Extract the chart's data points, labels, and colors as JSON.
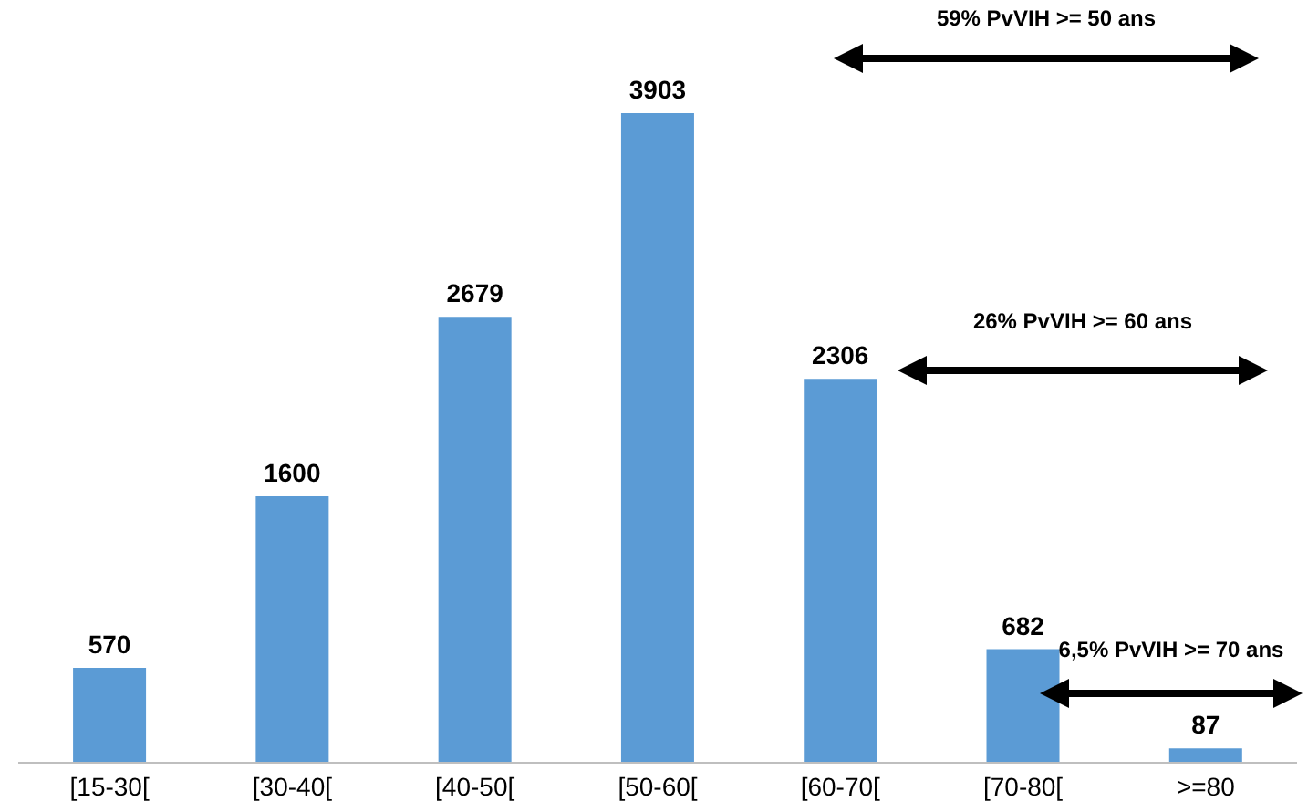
{
  "chart_data": {
    "type": "bar",
    "categories": [
      "[15-30[",
      "[30-40[",
      "[40-50[",
      "[50-60[",
      "[60-70[",
      "[70-80[",
      ">=80"
    ],
    "values": [
      570,
      1600,
      2679,
      3903,
      2306,
      682,
      87
    ],
    "color": "#5b9bd5",
    "data_labels": true,
    "grid": false,
    "legend": false,
    "annotations": [
      "59% PvVIH >= 50 ans",
      "26% PvVIH >= 60 ans",
      "6,5% PvVIH >= 70 ans"
    ]
  }
}
